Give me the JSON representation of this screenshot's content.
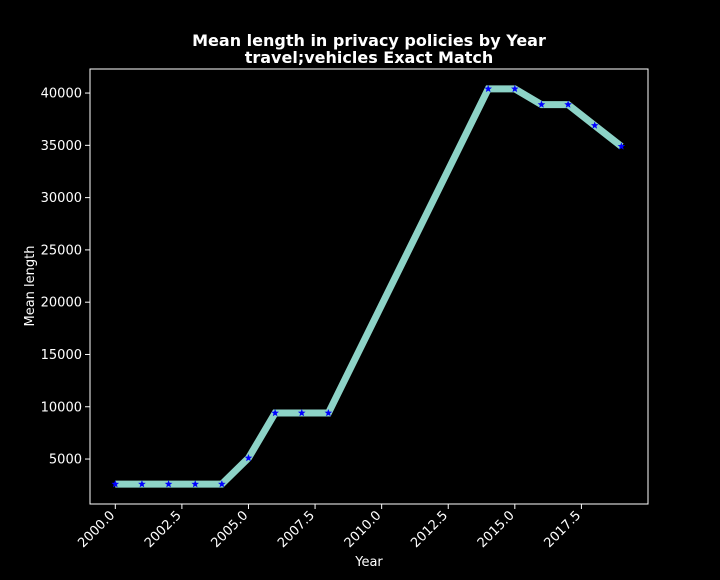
{
  "chart_data": {
    "type": "line",
    "title_line1": "Mean length in privacy policies by Year",
    "title_line2": "travel;vehicles Exact Match",
    "xlabel": "Year",
    "ylabel": "Mean length",
    "x": [
      2000,
      2001,
      2002,
      2003,
      2004,
      2005,
      2006,
      2007,
      2008,
      2014,
      2015,
      2016,
      2017,
      2018,
      2019
    ],
    "y": [
      2600,
      2600,
      2600,
      2600,
      2600,
      5100,
      9400,
      9400,
      9400,
      40400,
      40400,
      38900,
      38900,
      36900,
      34900
    ],
    "xlim": [
      1999.05,
      2020.0
    ],
    "ylim": [
      700,
      42300
    ],
    "x_ticks": [
      2000.0,
      2002.5,
      2005.0,
      2007.5,
      2010.0,
      2012.5,
      2015.0,
      2017.5
    ],
    "x_tick_labels": [
      "2000.0",
      "2002.5",
      "2005.0",
      "2007.5",
      "2010.0",
      "2012.5",
      "2015.0",
      "2017.5"
    ],
    "y_ticks": [
      5000,
      10000,
      15000,
      20000,
      25000,
      30000,
      35000,
      40000
    ],
    "y_tick_labels": [
      "5000",
      "10000",
      "15000",
      "20000",
      "25000",
      "30000",
      "35000",
      "40000"
    ],
    "colors": {
      "background": "#000000",
      "line": "#8dd3c7",
      "marker": "#0000ff",
      "text": "#ffffff",
      "axes": "#ffffff"
    },
    "marker": "star",
    "grid": false,
    "legend": "none"
  }
}
